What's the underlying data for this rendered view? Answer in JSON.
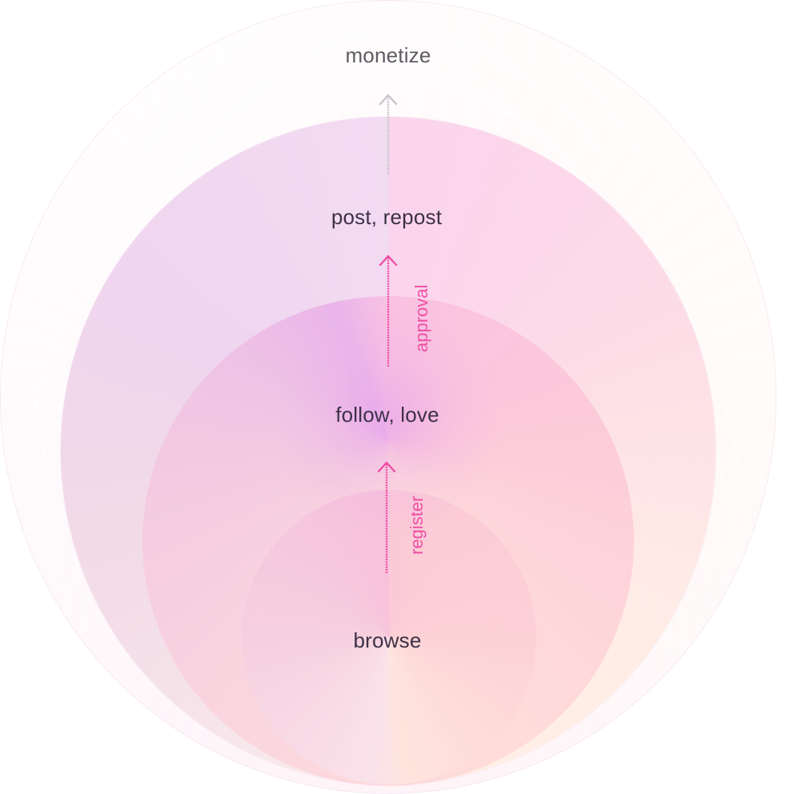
{
  "levels": [
    {
      "label": "browse"
    },
    {
      "label": "follow, love"
    },
    {
      "label": "post, repost"
    },
    {
      "label": "monetize"
    }
  ],
  "edges": [
    {
      "from": "browse",
      "to": "follow, love",
      "label": "register",
      "color": "#ee4fa5"
    },
    {
      "from": "follow, love",
      "to": "post, repost",
      "label": "approval",
      "color": "#ee4fa5"
    },
    {
      "from": "post, repost",
      "to": "monetize",
      "label": "",
      "color": "#c9c5cc"
    }
  ],
  "colors": {
    "accent": "#ee4fa5",
    "text": "#3d3147",
    "muted_text": "#5e5a63",
    "muted_arrow": "#c9c5cc"
  }
}
